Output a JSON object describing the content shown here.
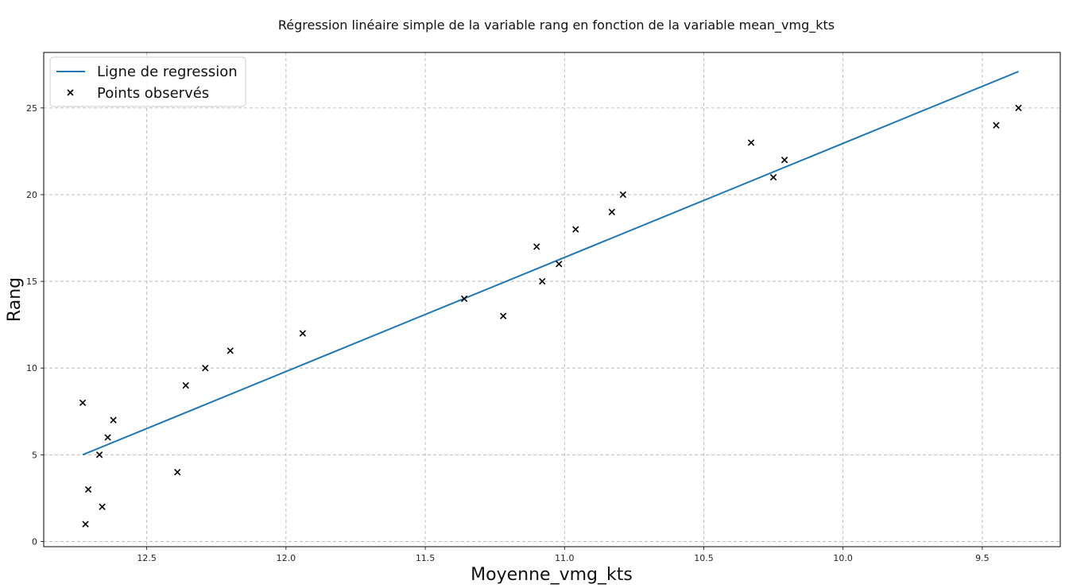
{
  "chart_data": {
    "type": "scatter",
    "title": "Régression linéaire simple de la variable rang en fonction de la variable mean_vmg_kts",
    "xlabel": "Moyenne_vmg_kts",
    "ylabel": "Rang",
    "x_inverted": true,
    "xlim": [
      12.87,
      9.22
    ],
    "ylim": [
      -0.3,
      28.2
    ],
    "grid": true,
    "legend_position": "top-left",
    "x_ticks": [
      12.5,
      12.0,
      11.5,
      11.0,
      10.5,
      10.0,
      9.5
    ],
    "x_tick_labels": [
      "12.5",
      "12.0",
      "11.5",
      "11.0",
      "10.5",
      "10.0",
      "9.5"
    ],
    "y_ticks": [
      0,
      5,
      10,
      15,
      20,
      25
    ],
    "y_tick_labels": [
      "0",
      "5",
      "10",
      "15",
      "20",
      "25"
    ],
    "series": [
      {
        "name": "Ligne de regression",
        "kind": "line",
        "color": "#1f77b4",
        "x": [
          12.73,
          9.37
        ],
        "y": [
          5.0,
          27.1
        ]
      },
      {
        "name": "Points observés",
        "kind": "scatter",
        "marker": "x",
        "color": "#000000",
        "points": [
          {
            "x": 12.72,
            "y": 1
          },
          {
            "x": 12.66,
            "y": 2
          },
          {
            "x": 12.71,
            "y": 3
          },
          {
            "x": 12.39,
            "y": 4
          },
          {
            "x": 12.67,
            "y": 5
          },
          {
            "x": 12.64,
            "y": 6
          },
          {
            "x": 12.62,
            "y": 7
          },
          {
            "x": 12.73,
            "y": 8
          },
          {
            "x": 12.36,
            "y": 9
          },
          {
            "x": 12.29,
            "y": 10
          },
          {
            "x": 12.2,
            "y": 11
          },
          {
            "x": 11.94,
            "y": 12
          },
          {
            "x": 11.22,
            "y": 13
          },
          {
            "x": 11.36,
            "y": 14
          },
          {
            "x": 11.08,
            "y": 15
          },
          {
            "x": 11.02,
            "y": 16
          },
          {
            "x": 11.1,
            "y": 17
          },
          {
            "x": 10.96,
            "y": 18
          },
          {
            "x": 10.83,
            "y": 19
          },
          {
            "x": 10.79,
            "y": 20
          },
          {
            "x": 10.25,
            "y": 21
          },
          {
            "x": 10.21,
            "y": 22
          },
          {
            "x": 10.33,
            "y": 23
          },
          {
            "x": 9.45,
            "y": 24
          },
          {
            "x": 9.37,
            "y": 25
          }
        ]
      }
    ]
  }
}
